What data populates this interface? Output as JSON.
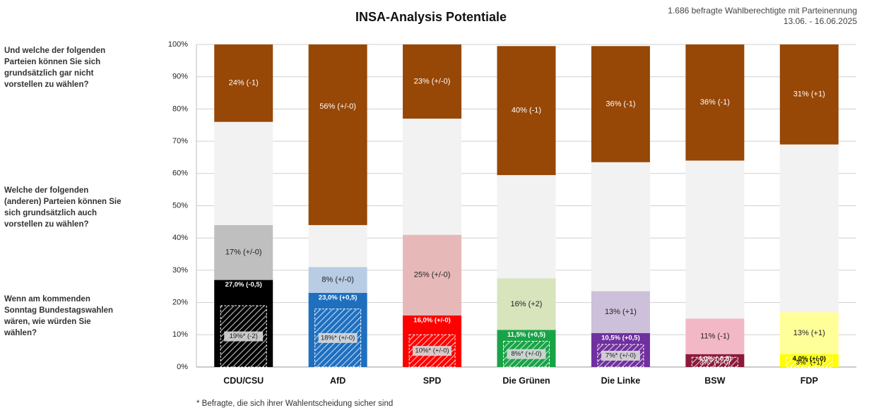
{
  "title": "INSA-Analysis Potentiale",
  "subtitle": {
    "line1": "1.686 befragte Wahlberechtigte mit Parteinennung",
    "line2": "13.06. - 16.06.2025"
  },
  "questions": {
    "top": "Und welche der folgenden Parteien können Sie sich grundsätzlich gar nicht vorstellen zu wählen?",
    "middle": "Welche der folgenden (anderen) Parteien können Sie sich grundsätzlich auch vorstellen zu wählen?",
    "bottom": "Wenn am kommenden Sonntag Bundestagswahlen wären, wie würden Sie wählen?"
  },
  "footnote": "* Befragte, die sich ihrer Wahlentscheidung sicher sind",
  "chart_data": {
    "type": "bar",
    "stacked": true,
    "ylim": [
      0,
      100
    ],
    "y_ticks": [
      "0%",
      "10%",
      "20%",
      "30%",
      "40%",
      "50%",
      "60%",
      "70%",
      "80%",
      "90%",
      "100%"
    ],
    "grid": true,
    "categories": [
      "CDU/CSU",
      "AfD",
      "SPD",
      "Die Grünen",
      "Die Linke",
      "BSW",
      "FDP"
    ],
    "colors": {
      "party": [
        "#000000",
        "#1f6fbf",
        "#ff0000",
        "#19a347",
        "#7030a0",
        "#8b1a3a",
        "#ffff00"
      ],
      "potential": [
        "#bfbfbf",
        "#b8cce4",
        "#e6b9b8",
        "#d7e4bc",
        "#ccc0da",
        "#f2b8c6",
        "#ffff99"
      ],
      "neutral": "#f2f2f2",
      "reject": "#974706"
    },
    "series": [
      {
        "values": [
          27.0,
          23.0,
          16.0,
          11.5,
          10.5,
          4.0,
          4.0
        ],
        "labels": [
          "27,0% (-0,5)",
          "23,0% (+0,5)",
          "16,0% (+/-0)",
          "11,5% (+0,5)",
          "10,5% (+0,5)",
          "4,0% (-0,5)",
          "4,0% (+/-0)"
        ]
      },
      {
        "values": [
          17,
          8,
          25,
          16,
          13,
          11,
          13
        ],
        "labels": [
          "17% (+/-0)",
          "8% (+/-0)",
          "25% (+/-0)",
          "16% (+2)",
          "13% (+1)",
          "11% (-1)",
          "13% (+1)"
        ]
      },
      {
        "values": [
          32,
          13,
          36,
          32,
          40,
          49,
          52
        ]
      },
      {
        "values": [
          24,
          56,
          23,
          40,
          36,
          36,
          31
        ],
        "labels": [
          "24% (-1)",
          "56% (+/-0)",
          "23% (+/-0)",
          "40% (-1)",
          "36% (-1)",
          "36% (-1)",
          "31% (+1)"
        ]
      }
    ],
    "sure_voters": {
      "values": [
        19,
        18,
        10,
        8,
        7,
        3,
        3
      ],
      "labels": [
        "19%* (-2)",
        "18%* (+/-0)",
        "10%* (+/-0)",
        "8%* (+/-0)",
        "7%* (+/-0)",
        "3%* (+/-0)",
        "3%* (+1)"
      ]
    }
  }
}
